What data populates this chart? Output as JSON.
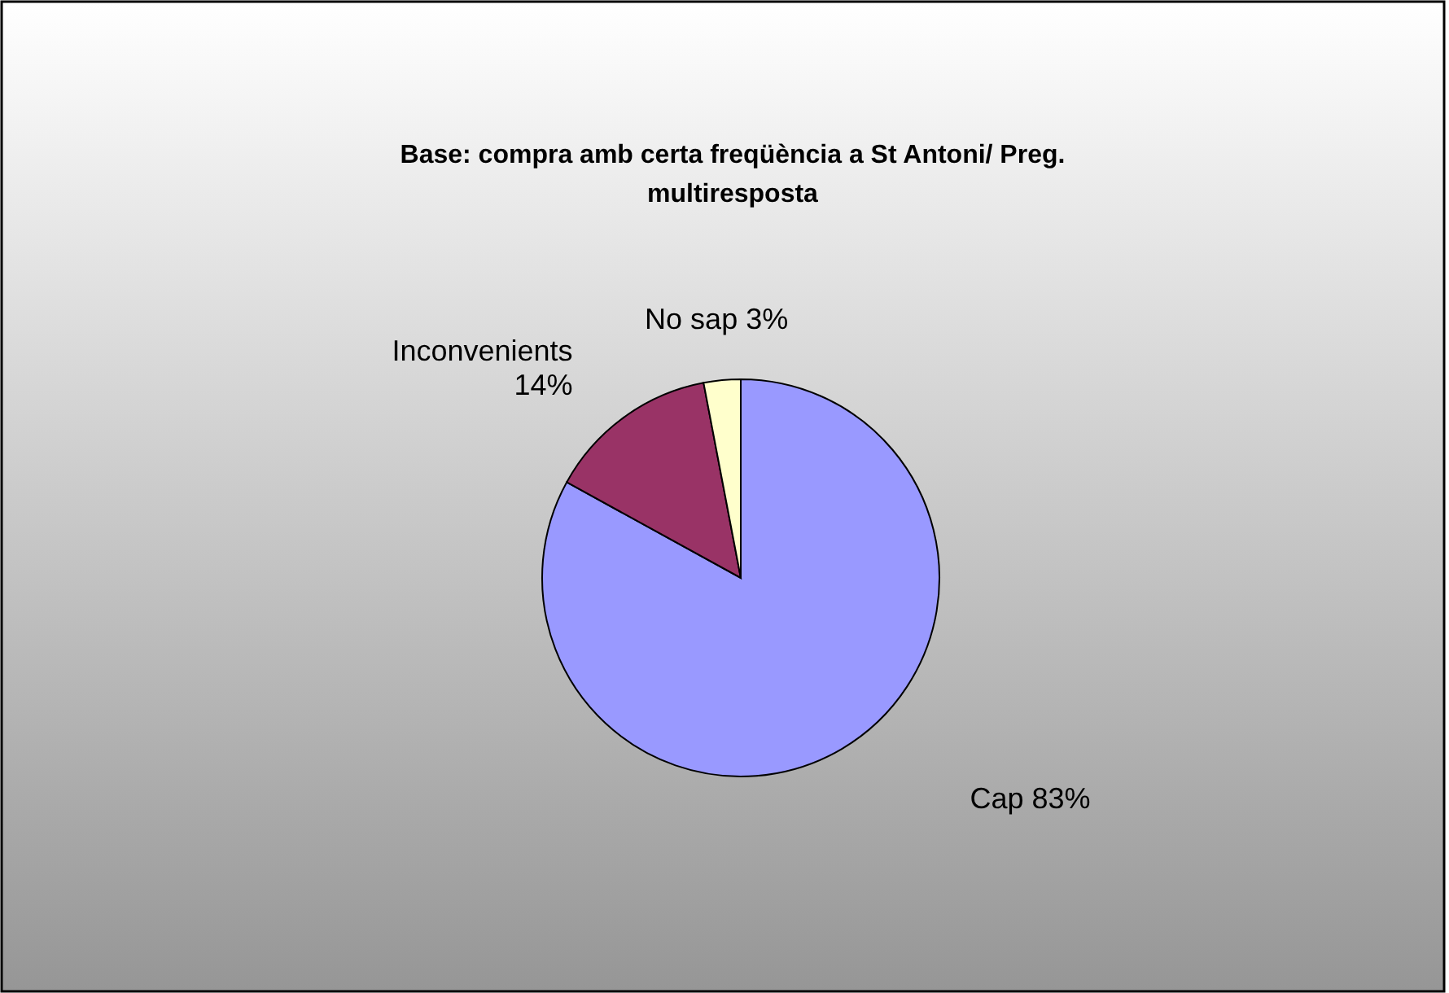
{
  "chart_data": {
    "type": "pie",
    "title": "Base: compra amb certa freqüència a St Antoni/ Preg. multiresposta",
    "categories": [
      "Cap",
      "Inconvenients",
      "No sap"
    ],
    "values": [
      83,
      14,
      3
    ],
    "value_labels": [
      "83%",
      "14%",
      "3%"
    ],
    "colors": [
      "#9999ff",
      "#993366",
      "#ffffcc"
    ]
  }
}
